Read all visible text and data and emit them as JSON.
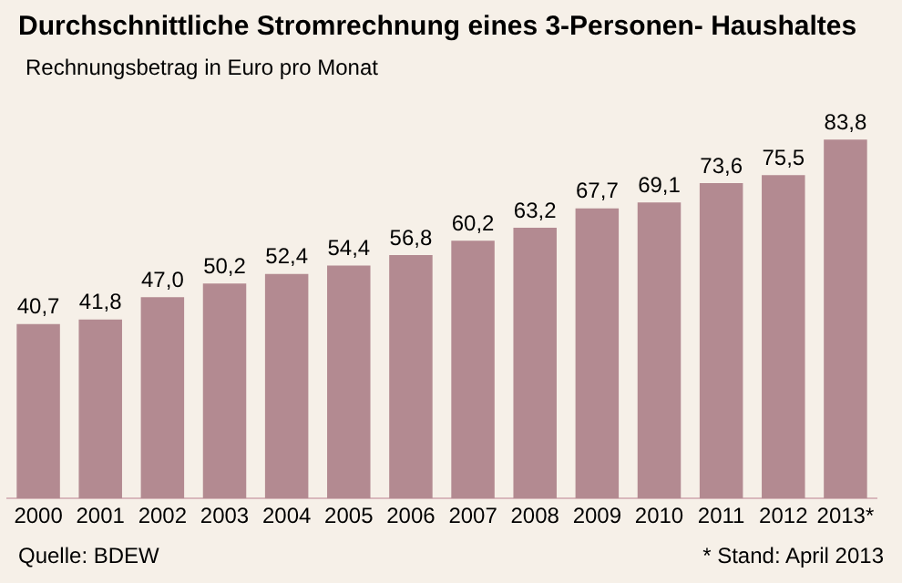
{
  "chart_data": {
    "type": "bar",
    "title": "Durchschnittliche Stromrechnung eines 3-Personen- Haushaltes",
    "subtitle": "Rechnungsbetrag in Euro pro Monat",
    "categories": [
      "2000",
      "2001",
      "2002",
      "2003",
      "2004",
      "2005",
      "2006",
      "2007",
      "2008",
      "2009",
      "2010",
      "2011",
      "2012",
      "2013*"
    ],
    "values": [
      40.7,
      41.8,
      47.0,
      50.2,
      52.4,
      54.4,
      56.8,
      60.2,
      63.2,
      67.7,
      69.1,
      73.6,
      75.5,
      83.8
    ],
    "value_labels": [
      "40,7",
      "41,8",
      "47,0",
      "50,2",
      "52,4",
      "54,4",
      "56,8",
      "60,2",
      "63,2",
      "67,7",
      "69,1",
      "73,6",
      "75,5",
      "83,8"
    ],
    "color": "#b38a91",
    "grid": false,
    "annotations": [
      "Quelle: BDEW",
      "* Stand: April 2013"
    ]
  }
}
